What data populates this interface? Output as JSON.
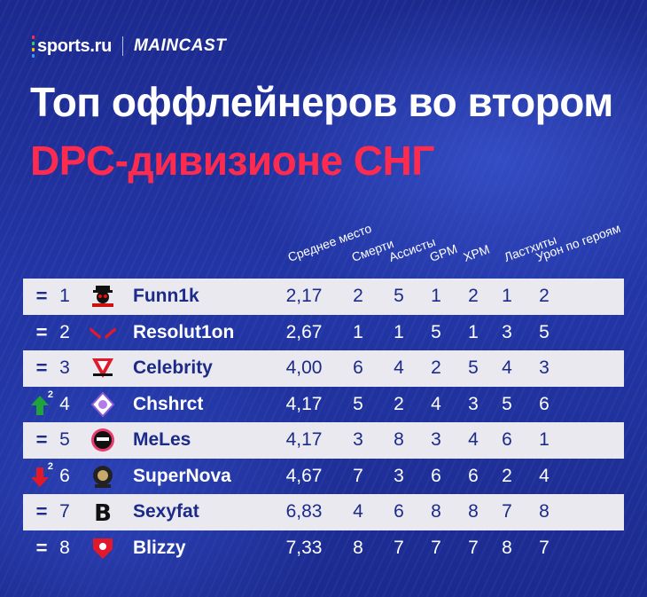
{
  "brand": {
    "sports": "sports.ru",
    "maincast": "MAINCAST",
    "dot_colors": [
      "#ff2b4e",
      "#39d353",
      "#ffc107",
      "#2d9cff"
    ]
  },
  "title": {
    "line1": "Топ оффлейнеров во втором",
    "line2": "DPC-дивизионе СНГ",
    "line2_color": "#ff2b4e"
  },
  "columns": [
    "Среднее место",
    "Смерти",
    "Ассисты",
    "GPM",
    "XPM",
    "Ластхиты",
    "Урон по героям"
  ],
  "colors": {
    "row_light": "#e9e9ef",
    "text_light_row": "#1c2a8a",
    "up": "#1fa33a",
    "down": "#e2182b"
  },
  "rows": [
    {
      "trend": "=",
      "trend_type": "same",
      "rank": "1",
      "logo_icon": "winstrike-skull-icon",
      "name": "Funn1k",
      "avg": "2,17",
      "values": [
        "2",
        "5",
        "1",
        "2",
        "1",
        "2"
      ],
      "style": "light"
    },
    {
      "trend": "=",
      "trend_type": "same",
      "rank": "2",
      "logo_icon": "red-wings-icon",
      "name": "Resolut1on",
      "avg": "2,67",
      "values": [
        "1",
        "1",
        "5",
        "1",
        "3",
        "5"
      ],
      "style": "dark"
    },
    {
      "trend": "=",
      "trend_type": "same",
      "rank": "3",
      "logo_icon": "v-emblem-icon",
      "name": "Celebrity",
      "avg": "4,00",
      "values": [
        "6",
        "4",
        "2",
        "5",
        "4",
        "3"
      ],
      "style": "light"
    },
    {
      "trend": "2",
      "trend_type": "up",
      "rank": "4",
      "logo_icon": "purple-crest-icon",
      "name": "Chshrct",
      "avg": "4,17",
      "values": [
        "5",
        "2",
        "4",
        "3",
        "5",
        "6"
      ],
      "style": "dark"
    },
    {
      "trend": "=",
      "trend_type": "same",
      "rank": "5",
      "logo_icon": "mask-face-icon",
      "name": "MeLes",
      "avg": "4,17",
      "values": [
        "3",
        "8",
        "3",
        "4",
        "6",
        "1"
      ],
      "style": "light"
    },
    {
      "trend": "2",
      "trend_type": "down",
      "rank": "6",
      "logo_icon": "lion-badge-icon",
      "name": "SuperNova",
      "avg": "4,67",
      "values": [
        "7",
        "3",
        "6",
        "6",
        "2",
        "4"
      ],
      "style": "dark"
    },
    {
      "trend": "=",
      "trend_type": "same",
      "rank": "7",
      "logo_icon": "b-letter-icon",
      "name": "Sexyfat",
      "avg": "6,83",
      "values": [
        "4",
        "6",
        "8",
        "8",
        "7",
        "8"
      ],
      "style": "light"
    },
    {
      "trend": "=",
      "trend_type": "same",
      "rank": "8",
      "logo_icon": "red-shield-icon",
      "name": "Blizzy",
      "avg": "7,33",
      "values": [
        "8",
        "7",
        "7",
        "7",
        "8",
        "7"
      ],
      "style": "dark"
    }
  ]
}
